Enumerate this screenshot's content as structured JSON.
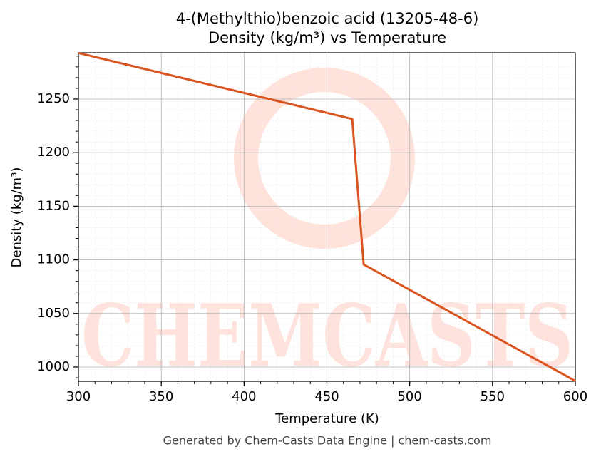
{
  "chart_data": {
    "type": "line",
    "title": "4-(Methylthio)benzoic acid (13205-48-6)",
    "subtitle": "Density (kg/m³) vs Temperature",
    "x_label": "Temperature (K)",
    "y_label": "Density (kg/m³)",
    "x": [
      300,
      465.3,
      472.2,
      600
    ],
    "series": [
      {
        "name": "Density",
        "color": "#d9541e",
        "values": [
          1293,
          1231.4,
          1095.7,
          987
        ]
      }
    ],
    "xlim": [
      300,
      600
    ],
    "xticks": [
      300,
      350,
      400,
      450,
      500,
      550,
      600
    ],
    "ylim": [
      986.7,
      1293.2
    ],
    "yticks": [
      1000,
      1050,
      1100,
      1150,
      1200,
      1250
    ],
    "grid": true,
    "minor_grid": true,
    "watermark": "CHEMCASTS",
    "footer": "Generated by Chem-Casts Data Engine | chem-casts.com"
  }
}
